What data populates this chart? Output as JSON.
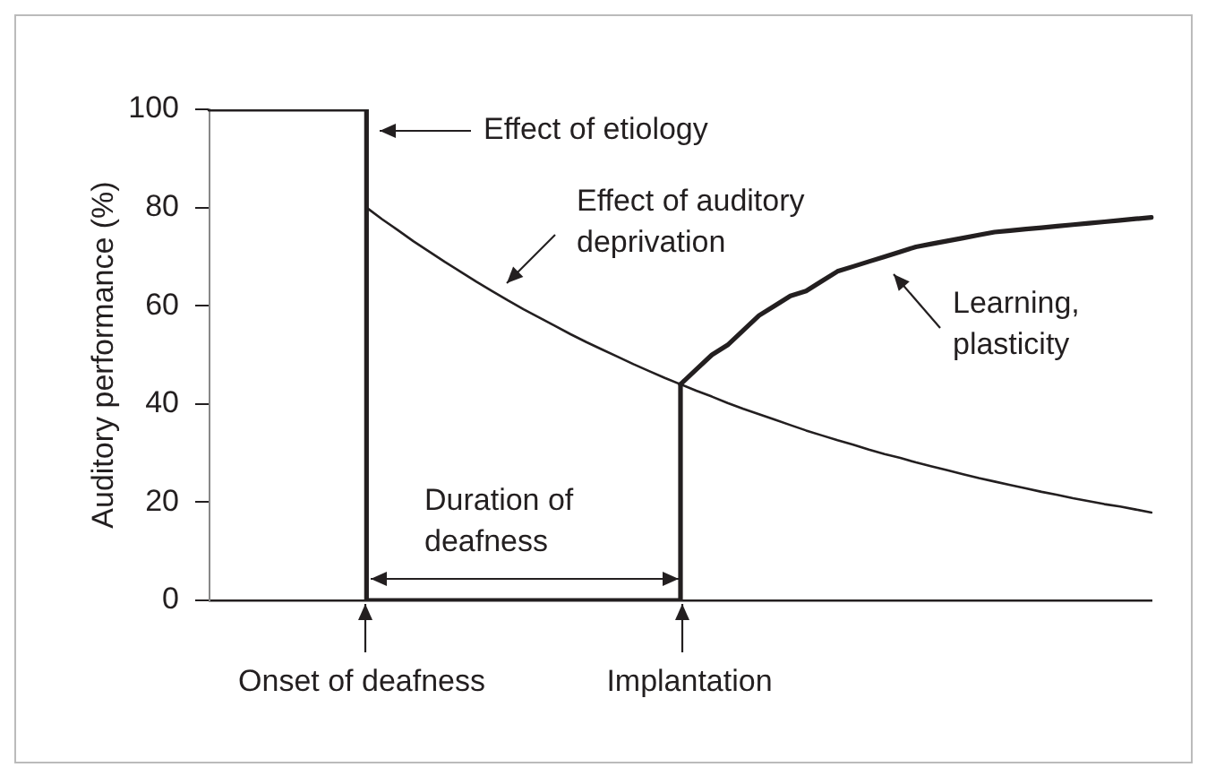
{
  "chart_data": {
    "type": "line",
    "ylabel": "Auditory performance (%)",
    "categories": [
      null,
      null,
      null,
      null,
      null,
      null,
      null,
      null,
      null,
      null,
      null,
      null,
      null,
      null,
      null,
      null,
      null,
      null,
      null,
      null,
      null,
      null,
      null,
      null,
      null,
      null,
      null,
      null,
      null,
      null,
      null,
      null,
      null,
      null,
      null,
      null,
      null,
      null,
      null,
      null,
      null,
      null,
      null,
      null,
      null,
      null,
      null,
      null,
      null,
      null,
      null,
      null,
      null,
      null,
      null,
      null,
      null,
      null,
      null,
      null,
      null
    ],
    "ylim": [
      0,
      100
    ],
    "yticks": [
      0,
      20,
      40,
      60,
      80,
      100
    ],
    "tick_labels": "y",
    "grid": false,
    "legend": false,
    "marker": "none",
    "series": [
      {
        "type": "step",
        "color": "#231f20",
        "values": [
          100,
          100,
          100,
          100,
          100,
          100,
          100,
          100,
          100,
          100,
          0,
          0,
          0,
          0,
          0,
          0,
          0,
          0,
          0,
          0,
          0,
          0,
          0,
          0,
          0,
          0,
          0,
          0,
          0,
          0,
          44,
          null,
          null,
          null,
          null,
          null,
          null,
          null,
          null,
          null,
          null,
          null,
          null,
          null,
          null,
          null,
          null,
          null,
          null,
          null,
          null,
          null,
          null,
          null,
          null,
          null,
          null,
          null,
          null,
          null,
          null
        ]
      },
      {
        "color": "#231f20",
        "values": [
          null,
          null,
          null,
          null,
          null,
          null,
          null,
          null,
          null,
          null,
          null,
          null,
          null,
          null,
          null,
          null,
          null,
          null,
          null,
          null,
          null,
          null,
          null,
          null,
          null,
          null,
          null,
          null,
          null,
          null,
          44,
          47,
          50,
          52,
          55,
          58,
          60,
          62,
          63,
          65,
          67,
          68,
          69,
          70,
          71,
          72,
          72.6,
          73.2,
          73.8,
          74.4,
          75,
          75.3,
          75.6,
          75.9,
          76.2,
          76.5,
          76.8,
          77.1,
          77.4,
          77.7,
          78
        ]
      },
      {
        "color": "#231f20",
        "values": [
          null,
          null,
          null,
          null,
          null,
          null,
          null,
          null,
          null,
          null,
          80,
          77.6,
          75.4,
          73.1,
          71,
          68.9,
          66.9,
          64.9,
          63,
          61.1,
          59.3,
          57.6,
          55.9,
          54.2,
          52.6,
          51.1,
          49.6,
          48.1,
          46.7,
          45.3,
          44,
          42.7,
          41.5,
          40.2,
          39,
          37.9,
          36.8,
          35.7,
          34.6,
          33.6,
          32.6,
          31.7,
          30.7,
          29.8,
          29,
          28.1,
          27.3,
          26.5,
          25.7,
          24.9,
          24.2,
          23.5,
          22.8,
          22.1,
          21.5,
          20.8,
          20.2,
          19.6,
          19.1,
          18.5,
          17.9
        ]
      }
    ],
    "annotations": [
      "Effect of etiology",
      "Effect of auditory\ndeprivation",
      "Duration of\ndeafness",
      "Onset of deafness",
      "Implantation",
      "Learning,\nplasticity"
    ]
  }
}
